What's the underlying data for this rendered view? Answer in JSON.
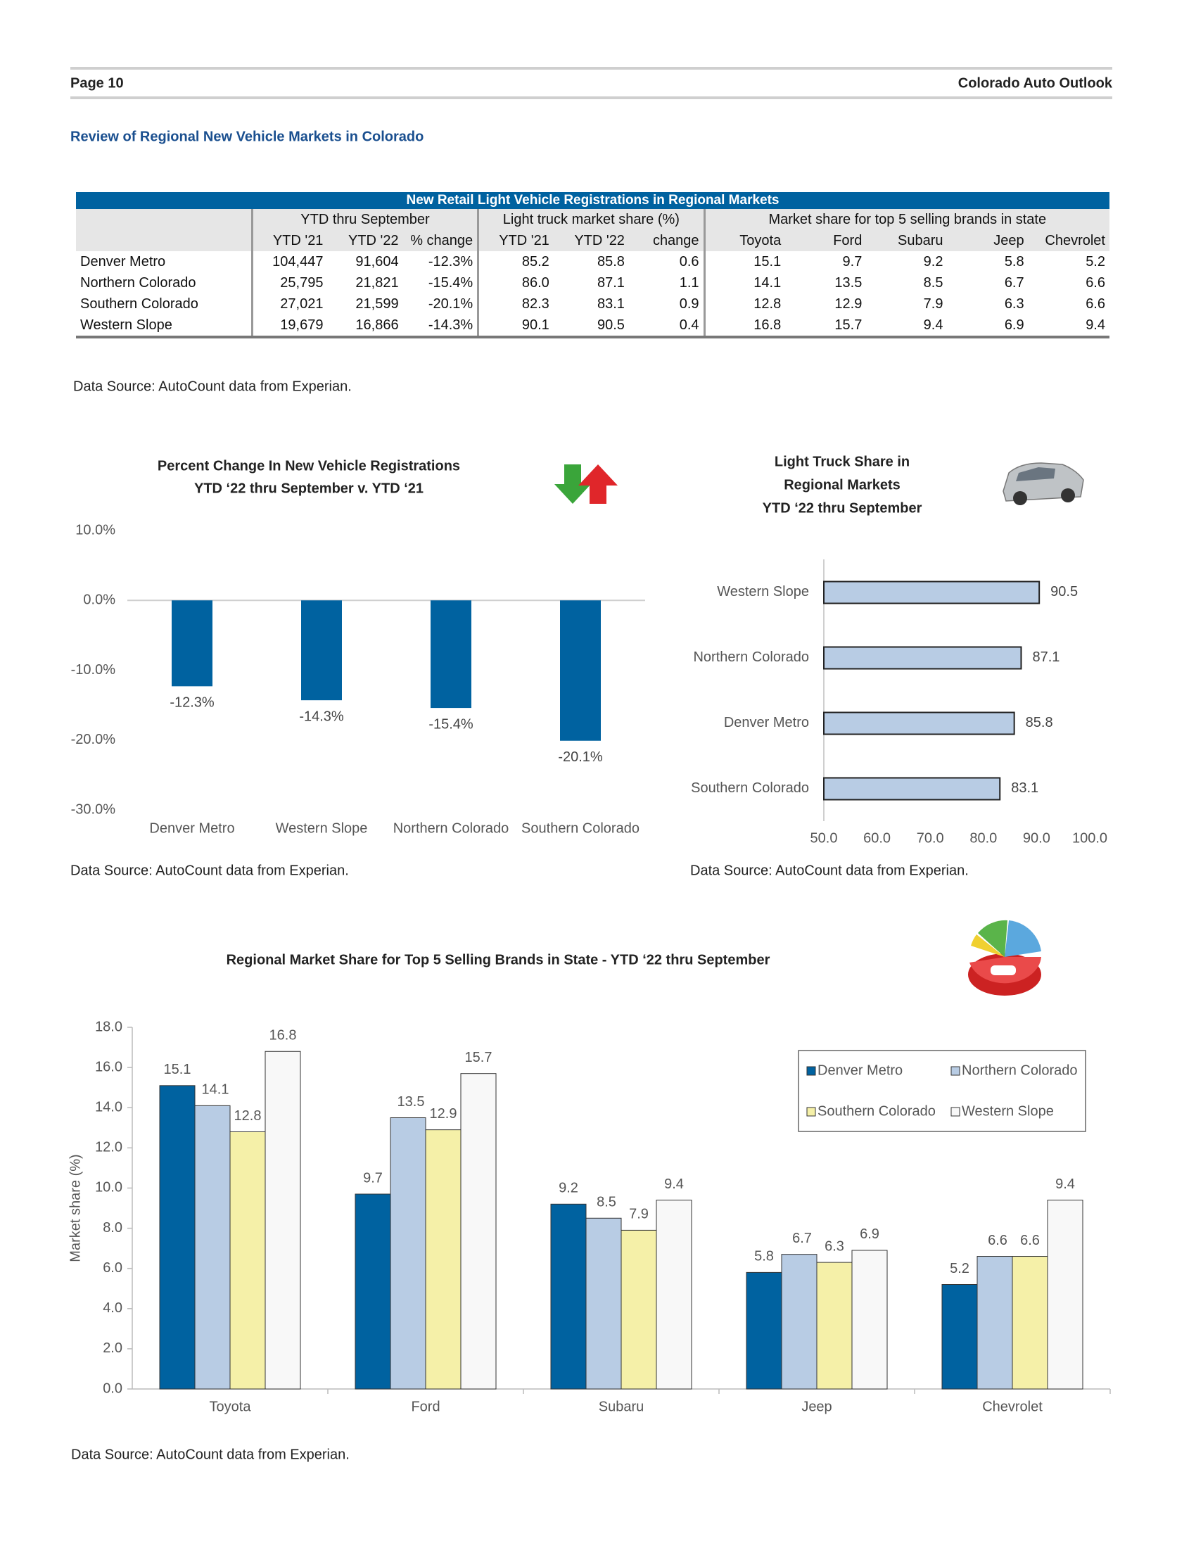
{
  "header": {
    "page": "Page 10",
    "publication": "Colorado Auto Outlook"
  },
  "title": "Review of Regional New Vehicle Markets in Colorado",
  "table": {
    "caption": "New Retail Light Vehicle Registrations in Regional Markets",
    "groups": [
      "YTD thru September",
      "Light truck market share (%)",
      "Market share for top 5 selling brands in state"
    ],
    "columns": [
      "YTD '21",
      "YTD '22",
      "% change",
      "YTD '21",
      "YTD '22",
      "change",
      "Toyota",
      "Ford",
      "Subaru",
      "Jeep",
      "Chevrolet"
    ],
    "rows": [
      [
        "Denver Metro",
        "104,447",
        "91,604",
        "-12.3%",
        "85.2",
        "85.8",
        "0.6",
        "15.1",
        "9.7",
        "9.2",
        "5.8",
        "5.2"
      ],
      [
        "Northern Colorado",
        "25,795",
        "21,821",
        "-15.4%",
        "86.0",
        "87.1",
        "1.1",
        "14.1",
        "13.5",
        "8.5",
        "6.7",
        "6.6"
      ],
      [
        "Southern Colorado",
        "27,021",
        "21,599",
        "-20.1%",
        "82.3",
        "83.1",
        "0.9",
        "12.8",
        "12.9",
        "7.9",
        "6.3",
        "6.6"
      ],
      [
        "Western Slope",
        "19,679",
        "16,866",
        "-14.3%",
        "90.1",
        "90.5",
        "0.4",
        "16.8",
        "15.7",
        "9.4",
        "6.9",
        "9.4"
      ]
    ],
    "source": "Data Source: AutoCount data from Experian."
  },
  "chart_data": [
    {
      "type": "bar",
      "title": [
        "Percent Change In New Vehicle Registrations",
        "YTD ‘22 thru September v. YTD ‘21"
      ],
      "categories": [
        "Denver Metro",
        "Western Slope",
        "Northern Colorado",
        "Southern Colorado"
      ],
      "values": [
        -12.3,
        -14.3,
        -15.4,
        -20.1
      ],
      "value_labels": [
        "-12.3%",
        "-14.3%",
        "-15.4%",
        "-20.1%"
      ],
      "color": "#0062a0",
      "ylim": [
        -30,
        10
      ],
      "yticks": [
        {
          "value": -30,
          "label": "-30.0%"
        },
        {
          "value": -20,
          "label": "-20.0%"
        },
        {
          "value": -10,
          "label": "-10.0%"
        },
        {
          "value": 0,
          "label": "0.0%"
        },
        {
          "value": 10,
          "label": "10.0%"
        }
      ],
      "grid": false,
      "source": "Data Source: AutoCount data from Experian."
    },
    {
      "type": "barh",
      "title": [
        "Light Truck Share in",
        "Regional Markets",
        "YTD ‘22 thru September"
      ],
      "categories": [
        "Western Slope",
        "Northern Colorado",
        "Denver Metro",
        "Southern Colorado"
      ],
      "values": [
        90.5,
        87.1,
        85.8,
        83.1
      ],
      "color": "#b8cce4",
      "xlim": [
        50,
        100
      ],
      "xticks": [
        {
          "value": 50,
          "label": "50.0"
        },
        {
          "value": 60,
          "label": "60.0"
        },
        {
          "value": 70,
          "label": "70.0"
        },
        {
          "value": 80,
          "label": "80.0"
        },
        {
          "value": 90,
          "label": "90.0"
        },
        {
          "value": 100,
          "label": "100.0"
        }
      ],
      "grid": false,
      "source": "Data Source: AutoCount data from Experian."
    },
    {
      "type": "grouped_bar",
      "title": "Regional Market Share for Top 5 Selling Brands in State - YTD ‘22 thru September",
      "ylabel": "Market share (%)",
      "categories": [
        "Toyota",
        "Ford",
        "Subaru",
        "Jeep",
        "Chevrolet"
      ],
      "series": [
        {
          "name": "Denver Metro",
          "color": "#0062a0",
          "values": [
            15.1,
            9.7,
            9.2,
            5.8,
            5.2
          ]
        },
        {
          "name": "Northern Colorado",
          "color": "#b8cce4",
          "values": [
            14.1,
            13.5,
            8.5,
            6.7,
            6.6
          ]
        },
        {
          "name": "Southern Colorado",
          "color": "#f5f0a8",
          "values": [
            12.8,
            12.9,
            7.9,
            6.3,
            6.6
          ]
        },
        {
          "name": "Western Slope",
          "color": "#f8f8f8",
          "values": [
            16.8,
            15.7,
            9.4,
            6.9,
            9.4
          ]
        }
      ],
      "ylim": [
        0,
        18
      ],
      "yticks": [
        {
          "value": 0,
          "label": "0.0"
        },
        {
          "value": 2,
          "label": "2.0"
        },
        {
          "value": 4,
          "label": "4.0"
        },
        {
          "value": 6,
          "label": "6.0"
        },
        {
          "value": 8,
          "label": "8.0"
        },
        {
          "value": 10,
          "label": "10.0"
        },
        {
          "value": 12,
          "label": "12.0"
        },
        {
          "value": 14,
          "label": "14.0"
        },
        {
          "value": 16,
          "label": "16.0"
        },
        {
          "value": 18,
          "label": "18.0"
        }
      ],
      "grid": false,
      "legend": "upper right",
      "source": "Data Source: AutoCount data from Experian."
    }
  ]
}
